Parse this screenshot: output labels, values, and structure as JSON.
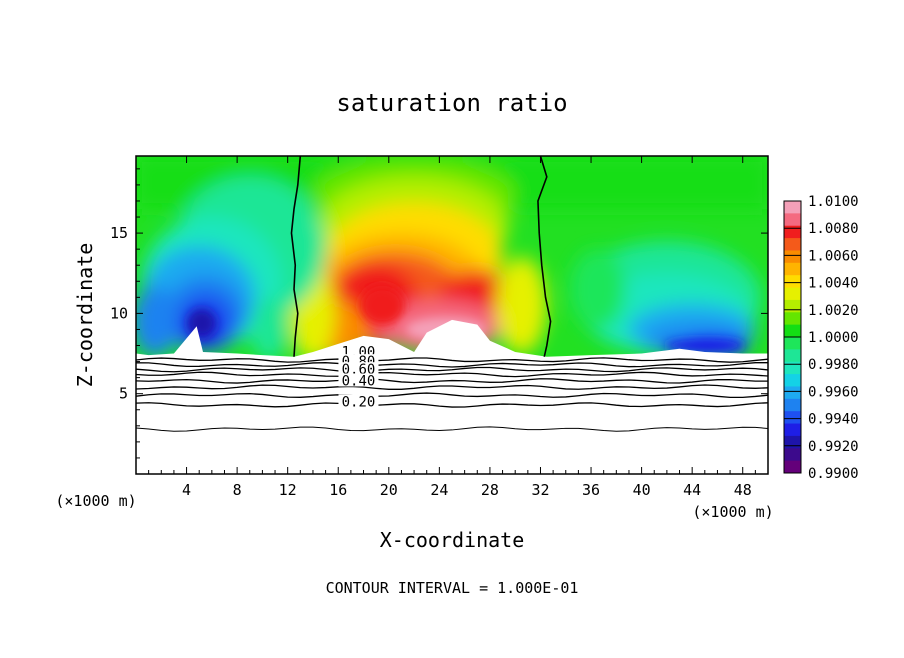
{
  "chart_data": {
    "type": "heatmap",
    "title": "saturation ratio",
    "xlabel": "X-coordinate",
    "ylabel": "Z-coordinate",
    "x_unit_left": "(×1000 m)",
    "x_unit_right": "(×1000 m)",
    "footer": "CONTOUR INTERVAL = 1.000E-01",
    "xlim": [
      0,
      50
    ],
    "ylim": [
      0,
      19.8
    ],
    "x_ticks": [
      4,
      8,
      12,
      16,
      20,
      24,
      28,
      32,
      36,
      40,
      44,
      48
    ],
    "y_ticks": [
      5,
      10,
      15
    ],
    "colorbar": {
      "min": 0.99,
      "max": 1.01,
      "labels": [
        "1.0100",
        "1.0080",
        "1.0060",
        "1.0040",
        "1.0020",
        "1.0000",
        "0.9980",
        "0.9960",
        "0.9940",
        "0.9920",
        "0.9900"
      ],
      "colors": [
        "#f4a0b8",
        "#f46a80",
        "#f01e1e",
        "#f45a1a",
        "#fa8c00",
        "#ffb400",
        "#ffdc00",
        "#e6f000",
        "#b4ee00",
        "#64e600",
        "#14de14",
        "#1ee65a",
        "#1ee696",
        "#1ee6be",
        "#14d2e6",
        "#1eaaf0",
        "#1e82f0",
        "#1e50f0",
        "#1e1ee6",
        "#1e14aa",
        "#3c0a8c",
        "#64007a"
      ]
    },
    "contours": [
      {
        "label": "1.00",
        "value": 1.0
      },
      {
        "label": "0.80",
        "value": 0.8
      },
      {
        "label": "0.60",
        "value": 0.6
      },
      {
        "label": "0.40",
        "value": 0.4
      },
      {
        "label": "0.20",
        "value": 0.2
      }
    ],
    "regions": {
      "cloud_base_z": 7.3,
      "saturation_boundary_x": [
        12.5,
        32.5
      ],
      "cold_blobs_x": [
        [
          2,
          10
        ],
        [
          38,
          48
        ]
      ],
      "warm_core_x": [
        16,
        30
      ]
    }
  }
}
